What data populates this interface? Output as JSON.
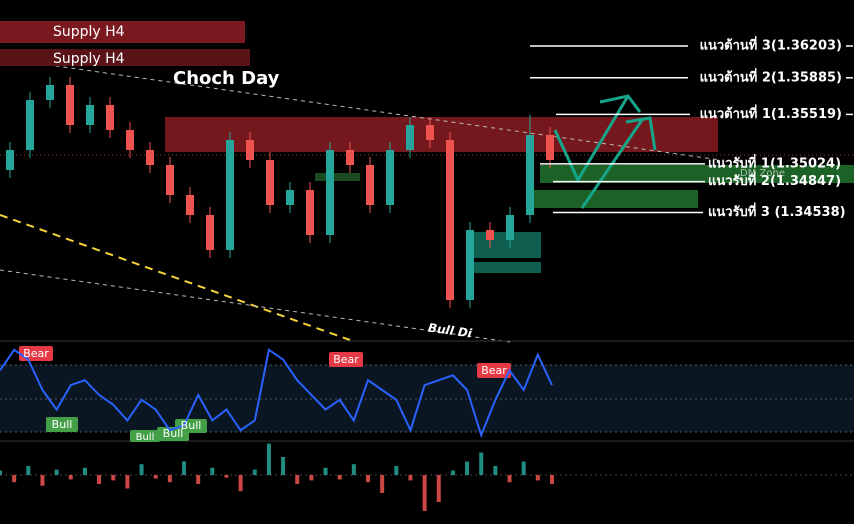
{
  "chart_data": {
    "type": "candlestick",
    "open": [
      1.34963,
      1.35163,
      1.35663,
      1.35813,
      1.35413,
      1.35613,
      1.35363,
      1.35163,
      1.35013,
      1.34713,
      1.34513,
      1.34163,
      1.35263,
      1.35063,
      1.34613,
      1.34763,
      1.34313,
      1.35163,
      1.35013,
      1.34613,
      1.35163,
      1.35413,
      1.35263,
      1.33663,
      1.34363,
      1.34263,
      1.34513,
      1.35313
    ],
    "high": [
      1.35243,
      1.35743,
      1.35893,
      1.35893,
      1.35693,
      1.35693,
      1.35443,
      1.35243,
      1.35093,
      1.34793,
      1.34593,
      1.35343,
      1.35343,
      1.35143,
      1.34843,
      1.34843,
      1.35243,
      1.35243,
      1.35093,
      1.35243,
      1.35493,
      1.35493,
      1.35343,
      1.34443,
      1.34443,
      1.34593,
      1.35513,
      1.35393
    ],
    "low": [
      1.34883,
      1.35083,
      1.35583,
      1.35333,
      1.35333,
      1.35283,
      1.35083,
      1.34933,
      1.34633,
      1.34433,
      1.34083,
      1.34083,
      1.34983,
      1.34533,
      1.34533,
      1.34233,
      1.34233,
      1.34933,
      1.34533,
      1.34533,
      1.35083,
      1.35183,
      1.33583,
      1.33583,
      1.34183,
      1.34183,
      1.34433,
      1.34983
    ],
    "close": [
      1.35163,
      1.35663,
      1.35813,
      1.35413,
      1.35613,
      1.35363,
      1.35163,
      1.35013,
      1.34713,
      1.34513,
      1.34163,
      1.35263,
      1.35063,
      1.34613,
      1.34763,
      1.34313,
      1.35163,
      1.35013,
      1.34613,
      1.35163,
      1.35413,
      1.35263,
      1.33663,
      1.34363,
      1.34263,
      1.34513,
      1.35313,
      1.35063
    ],
    "ylim": [
      1.33263,
      1.36663
    ],
    "up_color": "#26a69a",
    "down_color": "#ef5350",
    "levels": [
      {
        "label": "แนวต้านที่ 3(1.36203)",
        "value": 1.36203
      },
      {
        "label": "แนวต้านที่ 2(1.35885)",
        "value": 1.35885
      },
      {
        "label": "แนวต้านที่ 1(1.35519)",
        "value": 1.35519
      },
      {
        "label": "แนวรับที่ 1(1.35024)",
        "value": 1.35024
      },
      {
        "label": "แนวรับที่ 2(1.34847)",
        "value": 1.34847
      },
      {
        "label": "แนวรับที่ 3 (1.34538)",
        "value": 1.34538
      }
    ],
    "annotations": {
      "supply_1": "Supply H4",
      "supply_2": "Supply H4",
      "choch": "Choch Day",
      "bull_div": "Bull Di",
      "zone": "DM Zone"
    },
    "signals": [
      "Bear",
      "Bear",
      "Bear",
      "Bull",
      "Bull",
      "Bull",
      "Bull"
    ],
    "oscillator": {
      "values": [
        71,
        92,
        82,
        51,
        31,
        56,
        61,
        46,
        36,
        20,
        41,
        31,
        10,
        15,
        46,
        20,
        31,
        10,
        20,
        92,
        82,
        61,
        46,
        31,
        41,
        20,
        61,
        51,
        41,
        10,
        56,
        61,
        66,
        51,
        5,
        41,
        71,
        51,
        87,
        56
      ],
      "ylim": [
        0,
        100
      ],
      "color": "#2962ff"
    },
    "histogram": {
      "values": [
        5,
        -8,
        10,
        -12,
        6,
        -5,
        8,
        -10,
        -6,
        -15,
        12,
        -4,
        -8,
        15,
        -10,
        8,
        -3,
        -18,
        6,
        35,
        20,
        -10,
        -6,
        8,
        -5,
        12,
        -8,
        -20,
        10,
        -6,
        -40,
        -30,
        5,
        15,
        25,
        10,
        -8,
        15,
        -6,
        -10
      ],
      "ylim": [
        -50,
        50
      ]
    }
  }
}
